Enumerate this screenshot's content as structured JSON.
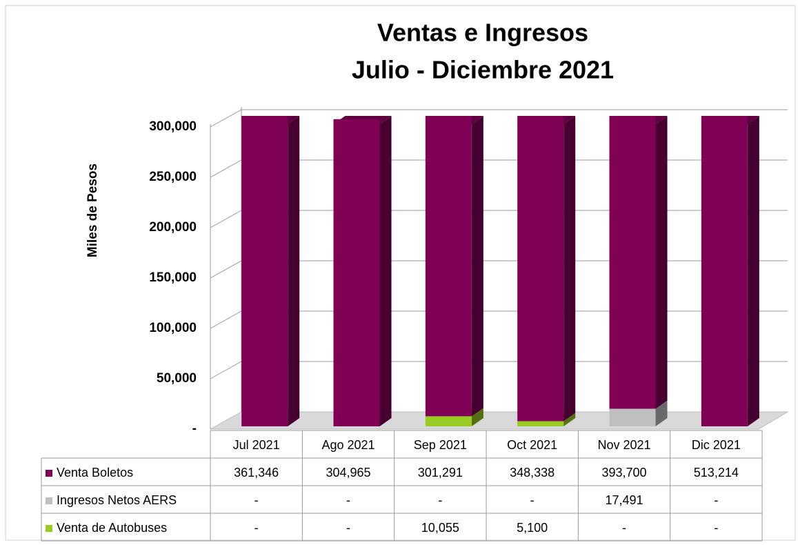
{
  "chart_data": {
    "type": "bar3d_stacked",
    "title": "Ventas e Ingresos",
    "subtitle": "Julio - Diciembre 2021",
    "y_label": "Miles de Pesos",
    "categories": [
      "Jul 2021",
      "Ago 2021",
      "Sep 2021",
      "Oct 2021",
      "Nov 2021",
      "Dic 2021"
    ],
    "series": [
      {
        "name": "Venta Boletos",
        "color": "#7f0055",
        "values": [
          361346,
          304965,
          301291,
          348338,
          393700,
          513214
        ],
        "value_labels": [
          "361,346",
          "304,965",
          "301,291",
          "348,338",
          "393,700",
          "513,214"
        ]
      },
      {
        "name": "Ingresos Netos AERS",
        "color": "#bfbfbf",
        "values": [
          null,
          null,
          null,
          null,
          17491,
          null
        ],
        "value_labels": [
          "-",
          "-",
          "-",
          "-",
          "17,491",
          "-"
        ]
      },
      {
        "name": "Venta de Autobuses",
        "color": "#99cc22",
        "values": [
          null,
          null,
          10055,
          5100,
          null,
          null
        ],
        "value_labels": [
          "-",
          "-",
          "10,055",
          "5,100",
          "-",
          "-"
        ]
      }
    ],
    "ylim": [
      0,
      300000
    ],
    "yticks": [
      {
        "value": 0,
        "label": "-"
      },
      {
        "value": 50000,
        "label": "50,000"
      },
      {
        "value": 100000,
        "label": "100,000"
      },
      {
        "value": 150000,
        "label": "150,000"
      },
      {
        "value": 200000,
        "label": "200,000"
      },
      {
        "value": 250000,
        "label": "250,000"
      },
      {
        "value": 300000,
        "label": "300,000"
      }
    ],
    "grid": true
  }
}
